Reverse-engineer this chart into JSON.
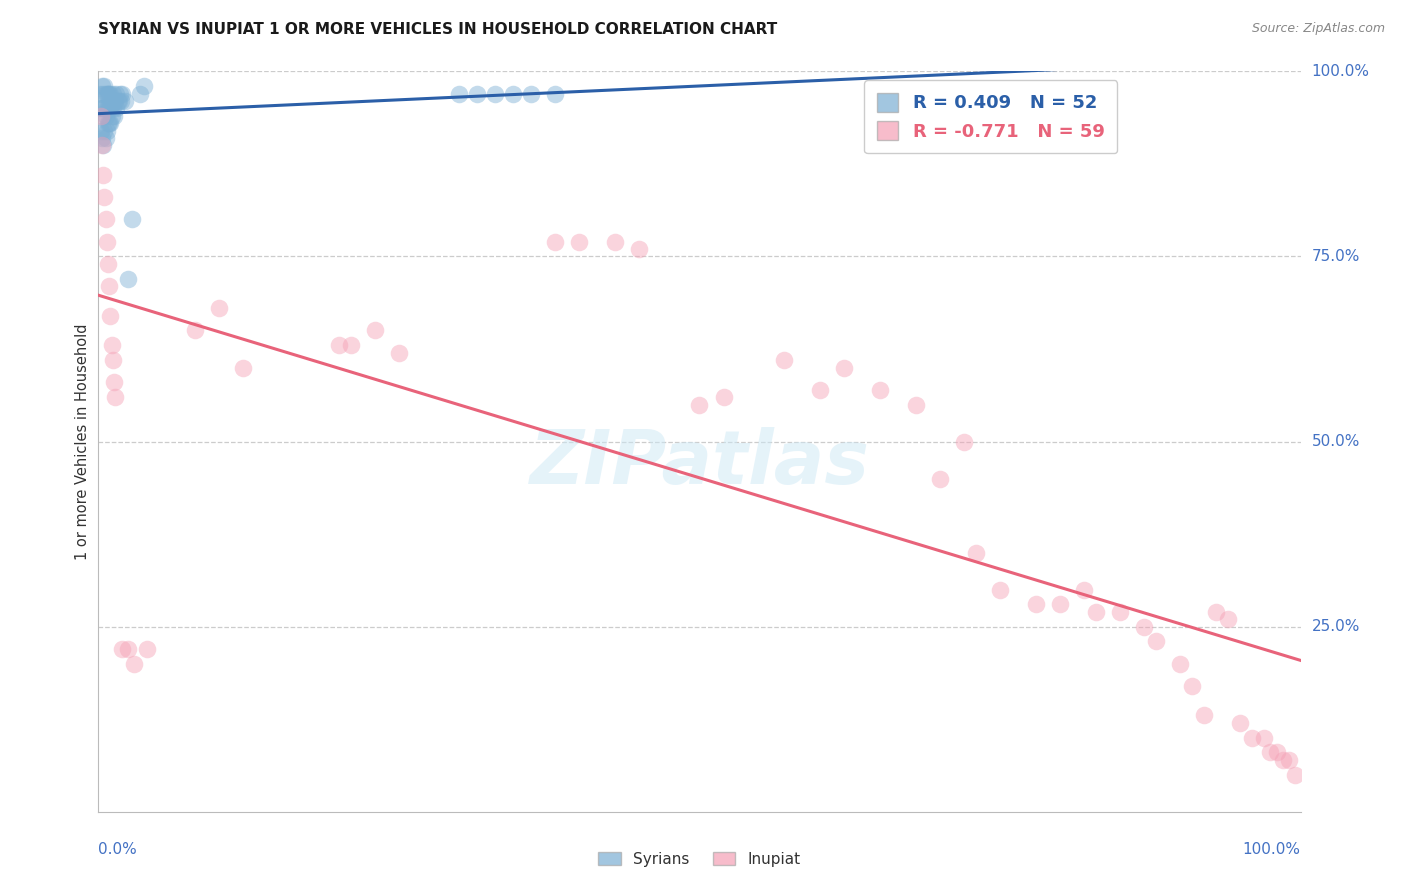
{
  "title": "SYRIAN VS INUPIAT 1 OR MORE VEHICLES IN HOUSEHOLD CORRELATION CHART",
  "source": "Source: ZipAtlas.com",
  "ylabel": "1 or more Vehicles in Household",
  "syrian_R": 0.409,
  "syrian_N": 52,
  "inupiat_R": -0.771,
  "inupiat_N": 59,
  "syrian_color": "#7bafd4",
  "inupiat_color": "#f4a0b5",
  "syrian_line_color": "#2b5fa8",
  "inupiat_line_color": "#e8637a",
  "watermark": "ZIPatlas",
  "ytick_labels": [
    "100.0%",
    "75.0%",
    "50.0%",
    "25.0%"
  ],
  "ytick_values": [
    1.0,
    0.75,
    0.5,
    0.25
  ],
  "xtick_left": "0.0%",
  "xtick_right": "100.0%",
  "legend_label_syrian": "Syrians",
  "legend_label_inupiat": "Inupiat",
  "syrian_x": [
    0.001,
    0.002,
    0.002,
    0.003,
    0.003,
    0.003,
    0.004,
    0.004,
    0.004,
    0.005,
    0.005,
    0.005,
    0.006,
    0.006,
    0.006,
    0.007,
    0.007,
    0.007,
    0.008,
    0.008,
    0.008,
    0.009,
    0.009,
    0.009,
    0.01,
    0.01,
    0.01,
    0.011,
    0.011,
    0.012,
    0.012,
    0.013,
    0.013,
    0.014,
    0.015,
    0.015,
    0.016,
    0.017,
    0.018,
    0.019,
    0.02,
    0.022,
    0.025,
    0.028,
    0.035,
    0.038,
    0.3,
    0.315,
    0.33,
    0.345,
    0.36,
    0.38
  ],
  "syrian_y": [
    0.97,
    0.95,
    0.92,
    0.98,
    0.95,
    0.91,
    0.97,
    0.94,
    0.9,
    0.98,
    0.95,
    0.92,
    0.97,
    0.94,
    0.91,
    0.97,
    0.95,
    0.92,
    0.97,
    0.95,
    0.93,
    0.97,
    0.95,
    0.93,
    0.97,
    0.95,
    0.93,
    0.96,
    0.94,
    0.97,
    0.95,
    0.96,
    0.94,
    0.96,
    0.97,
    0.95,
    0.96,
    0.96,
    0.97,
    0.96,
    0.97,
    0.96,
    0.72,
    0.8,
    0.97,
    0.98,
    0.97,
    0.97,
    0.97,
    0.97,
    0.97,
    0.97
  ],
  "inupiat_x": [
    0.002,
    0.003,
    0.004,
    0.005,
    0.006,
    0.007,
    0.008,
    0.009,
    0.01,
    0.011,
    0.012,
    0.013,
    0.014,
    0.02,
    0.025,
    0.03,
    0.04,
    0.08,
    0.1,
    0.12,
    0.2,
    0.21,
    0.23,
    0.25,
    0.38,
    0.4,
    0.43,
    0.45,
    0.5,
    0.52,
    0.57,
    0.6,
    0.62,
    0.65,
    0.68,
    0.7,
    0.72,
    0.73,
    0.75,
    0.78,
    0.8,
    0.82,
    0.83,
    0.85,
    0.87,
    0.88,
    0.9,
    0.91,
    0.92,
    0.93,
    0.94,
    0.95,
    0.96,
    0.97,
    0.975,
    0.98,
    0.985,
    0.99,
    0.995
  ],
  "inupiat_y": [
    0.94,
    0.9,
    0.86,
    0.83,
    0.8,
    0.77,
    0.74,
    0.71,
    0.67,
    0.63,
    0.61,
    0.58,
    0.56,
    0.22,
    0.22,
    0.2,
    0.22,
    0.65,
    0.68,
    0.6,
    0.63,
    0.63,
    0.65,
    0.62,
    0.77,
    0.77,
    0.77,
    0.76,
    0.55,
    0.56,
    0.61,
    0.57,
    0.6,
    0.57,
    0.55,
    0.45,
    0.5,
    0.35,
    0.3,
    0.28,
    0.28,
    0.3,
    0.27,
    0.27,
    0.25,
    0.23,
    0.2,
    0.17,
    0.13,
    0.27,
    0.26,
    0.12,
    0.1,
    0.1,
    0.08,
    0.08,
    0.07,
    0.07,
    0.05
  ]
}
